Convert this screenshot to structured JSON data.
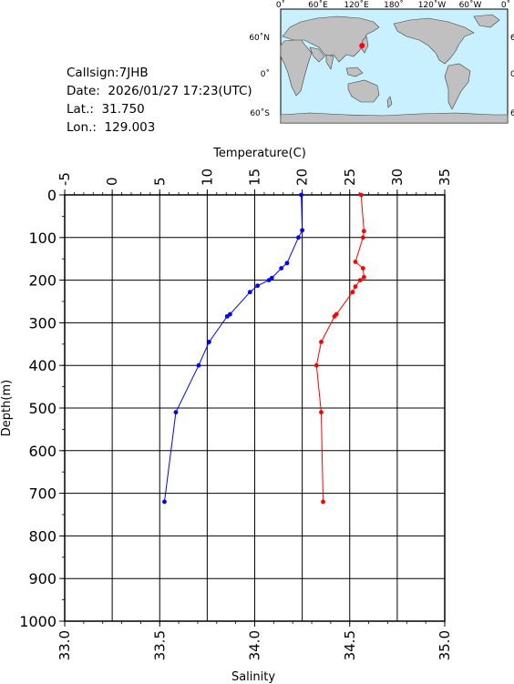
{
  "info": {
    "callsign": "Callsign:7JHB",
    "date": "Date:  2026/01/27 17:23(UTC)",
    "lat": "Lat.:  31.750",
    "lon": "Lon.:  129.003"
  },
  "map": {
    "lon_ticks": [
      "0˚",
      "60˚E",
      "120˚E",
      "180˚",
      "120˚W",
      "60˚W",
      "0˚"
    ],
    "lat_ticks": [
      "60˚N",
      "0˚",
      "60˚S"
    ],
    "ocean_color": "#c8f0ff",
    "land_color": "#c0c0c0",
    "marker_color": "#ff0000",
    "marker": {
      "lon": 129.003,
      "lat": 31.75
    }
  },
  "chart_data": {
    "type": "line",
    "ylabel": "Depth(m)",
    "y_axis": {
      "range": [
        0,
        1000
      ],
      "inverted": true,
      "ticks": [
        "0",
        "100",
        "200",
        "300",
        "400",
        "500",
        "600",
        "700",
        "800",
        "900",
        "1000"
      ]
    },
    "x_top": {
      "label": "Temperature(C)",
      "range": [
        -5,
        35
      ],
      "ticks": [
        "-5",
        "0",
        "5",
        "10",
        "15",
        "20",
        "25",
        "30",
        "35"
      ]
    },
    "x_bottom": {
      "label": "Salinity",
      "range": [
        33.0,
        35.0
      ],
      "ticks": [
        "33.0",
        "33.5",
        "34.0",
        "34.5",
        "35.0"
      ]
    },
    "grid": true,
    "series": [
      {
        "axis": "top",
        "color": "#0000ff",
        "points": [
          [
            19.9,
            0
          ],
          [
            20.0,
            83
          ],
          [
            19.6,
            100
          ],
          [
            18.4,
            160
          ],
          [
            17.8,
            172
          ],
          [
            16.8,
            195
          ],
          [
            16.5,
            200
          ],
          [
            15.3,
            213
          ],
          [
            14.5,
            228
          ],
          [
            12.4,
            280
          ],
          [
            12.1,
            285
          ],
          [
            10.2,
            345
          ],
          [
            9.1,
            400
          ],
          [
            6.7,
            510
          ],
          [
            5.5,
            720
          ]
        ]
      },
      {
        "axis": "top",
        "color": "#ff0000",
        "points": [
          [
            26.2,
            0
          ],
          [
            26.5,
            85
          ],
          [
            26.4,
            100
          ],
          [
            25.6,
            157
          ],
          [
            26.4,
            172
          ],
          [
            26.5,
            193
          ],
          [
            26.1,
            200
          ],
          [
            25.6,
            215
          ],
          [
            25.3,
            228
          ],
          [
            23.6,
            280
          ],
          [
            23.4,
            285
          ],
          [
            22.0,
            345
          ],
          [
            21.5,
            400
          ],
          [
            22.0,
            510
          ],
          [
            22.2,
            720
          ]
        ]
      }
    ]
  }
}
